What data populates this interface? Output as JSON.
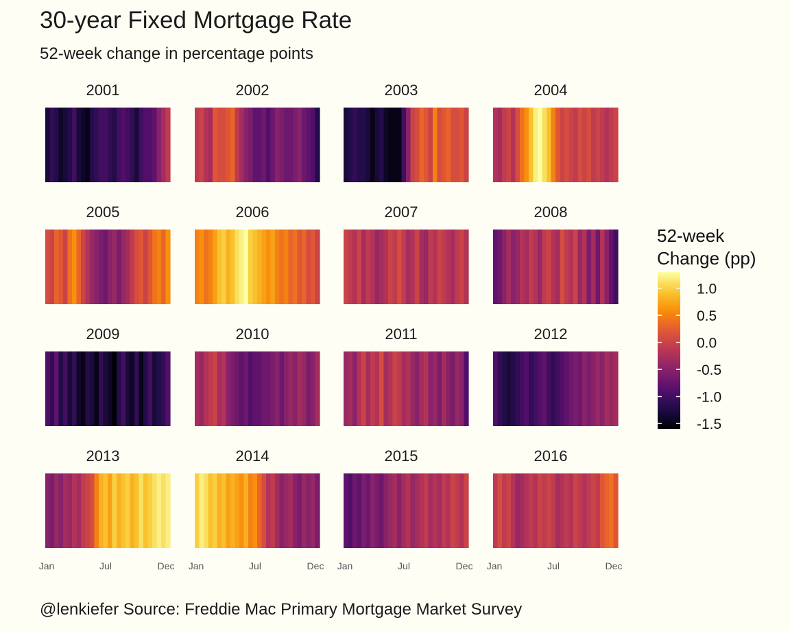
{
  "title": "30-year Fixed Mortgage Rate",
  "subtitle": "52-week change in percentage points",
  "caption": "@lenkiefer Source: Freddie Mac Primary Mortgage Market Survey",
  "chart_data": {
    "type": "heatmap",
    "facet_by": "year",
    "x_tick_labels": [
      "Jan",
      "Jul",
      "Dec"
    ],
    "legend": {
      "title_lines": [
        "52-week",
        "Change (pp)"
      ],
      "ticks": [
        1.0,
        0.5,
        0.0,
        -0.5,
        -1.0,
        -1.5
      ],
      "tick_labels": [
        "1.0",
        "0.5",
        "0.0",
        "-0.5",
        "-1.0",
        "-1.5"
      ],
      "range": [
        -1.6,
        1.3
      ],
      "colormap": "inferno"
    },
    "facets": [
      {
        "year": "2001",
        "values": [
          -1.3,
          -1.1,
          -1.2,
          -1.4,
          -1.3,
          -1.2,
          -1.0,
          -1.3,
          -1.4,
          -1.5,
          -1.2,
          -1.1,
          -1.0,
          -1.0,
          -1.1,
          -1.2,
          -1.0,
          -0.9,
          -1.0,
          -1.1,
          -1.3,
          -1.0,
          -0.9,
          -0.9,
          -0.8,
          -0.5,
          -0.3,
          -0.1
        ]
      },
      {
        "year": "2002",
        "values": [
          -0.1,
          0.0,
          -0.2,
          -0.3,
          0.2,
          0.1,
          0.1,
          0.2,
          0.3,
          -0.1,
          -0.3,
          -0.5,
          -0.6,
          -0.8,
          -0.8,
          -0.7,
          -0.9,
          -0.7,
          -0.5,
          -0.6,
          -0.7,
          -0.7,
          -0.6,
          -0.5,
          -0.7,
          -0.8,
          -0.9,
          -1.2
        ]
      },
      {
        "year": "2003",
        "values": [
          -1.3,
          -1.2,
          -1.1,
          -1.2,
          -1.2,
          -1.3,
          -1.5,
          -1.3,
          -1.2,
          -1.4,
          -1.5,
          -1.5,
          -1.5,
          -1.0,
          -0.5,
          0.0,
          0.1,
          0.3,
          0.2,
          0.0,
          0.5,
          0.1,
          0.2,
          0.3,
          0.1,
          0.1,
          0.2,
          0.0
        ]
      },
      {
        "year": "2004",
        "values": [
          -0.2,
          -0.3,
          -0.1,
          0.0,
          -0.2,
          0.1,
          0.4,
          0.6,
          0.9,
          1.2,
          1.3,
          1.1,
          0.9,
          0.5,
          0.2,
          0.0,
          0.1,
          0.0,
          -0.1,
          0.1,
          0.0,
          0.1,
          -0.1,
          0.0,
          -0.1,
          -0.2,
          -0.1,
          0.0
        ]
      },
      {
        "year": "2005",
        "values": [
          0.1,
          0.0,
          0.3,
          0.2,
          0.0,
          0.4,
          0.6,
          0.3,
          0.0,
          -0.2,
          -0.4,
          -0.5,
          -0.6,
          -0.7,
          -0.5,
          -0.4,
          -0.6,
          -0.4,
          -0.3,
          -0.1,
          0.1,
          0.2,
          0.0,
          0.2,
          0.4,
          0.5,
          0.3,
          0.6
        ]
      },
      {
        "year": "2006",
        "values": [
          0.5,
          0.6,
          0.4,
          0.5,
          0.7,
          0.9,
          1.0,
          0.8,
          0.9,
          1.1,
          1.2,
          1.3,
          1.0,
          0.9,
          0.8,
          0.7,
          0.6,
          0.7,
          0.5,
          0.4,
          0.5,
          0.3,
          0.4,
          0.2,
          0.3,
          0.1,
          0.2,
          0.0
        ]
      },
      {
        "year": "2007",
        "values": [
          0.0,
          -0.1,
          -0.2,
          0.0,
          -0.3,
          -0.1,
          -0.2,
          -0.4,
          -0.3,
          -0.2,
          0.0,
          -0.1,
          0.1,
          -0.1,
          -0.3,
          -0.2,
          0.0,
          -0.3,
          -0.4,
          -0.1,
          -0.2,
          0.0,
          -0.1,
          -0.2,
          -0.3,
          -0.1,
          0.0,
          -0.2
        ]
      },
      {
        "year": "2008",
        "values": [
          -0.8,
          -0.7,
          -0.5,
          -0.3,
          -0.5,
          -0.4,
          -0.2,
          -0.3,
          -0.1,
          -0.2,
          -0.4,
          -0.1,
          0.0,
          -0.2,
          -0.3,
          0.1,
          -0.1,
          -0.2,
          0.0,
          -0.4,
          -0.2,
          -0.6,
          -0.3,
          -0.7,
          -0.2,
          -0.5,
          -0.8,
          -1.0
        ]
      },
      {
        "year": "2009",
        "values": [
          -0.9,
          -1.1,
          -0.8,
          -1.2,
          -1.0,
          -1.3,
          -1.1,
          -1.4,
          -1.5,
          -1.2,
          -1.3,
          -1.5,
          -1.1,
          -1.3,
          -1.4,
          -1.6,
          -1.2,
          -1.0,
          -1.3,
          -1.4,
          -1.1,
          -1.5,
          -1.2,
          -1.0,
          -1.3,
          -1.2,
          -1.1,
          -0.9
        ]
      },
      {
        "year": "2010",
        "values": [
          -0.3,
          -0.4,
          -0.2,
          -0.1,
          0.0,
          -0.3,
          -0.2,
          -0.5,
          -0.6,
          -0.7,
          -0.8,
          -0.7,
          -0.9,
          -0.8,
          -0.8,
          -0.7,
          -0.7,
          -0.6,
          -0.5,
          -0.7,
          -0.5,
          -0.4,
          -0.5,
          -0.3,
          -0.4,
          -0.6,
          -0.5,
          -0.3
        ]
      },
      {
        "year": "2011",
        "values": [
          -0.4,
          -0.3,
          -0.5,
          -0.2,
          0.0,
          -0.3,
          -0.1,
          -0.2,
          0.1,
          -0.3,
          -0.2,
          0.0,
          -0.1,
          -0.3,
          -0.2,
          -0.4,
          -0.5,
          -0.3,
          -0.2,
          -0.5,
          -0.4,
          -0.6,
          -0.3,
          -0.5,
          -0.6,
          -0.4,
          -0.5,
          -0.9
        ]
      },
      {
        "year": "2012",
        "values": [
          -0.9,
          -1.1,
          -1.2,
          -1.3,
          -1.2,
          -1.1,
          -1.0,
          -0.9,
          -1.1,
          -1.0,
          -0.9,
          -0.8,
          -1.0,
          -1.1,
          -1.0,
          -0.9,
          -0.8,
          -0.7,
          -0.6,
          -0.7,
          -0.5,
          -0.6,
          -0.5,
          -0.4,
          -0.5,
          -0.3,
          -0.4,
          -0.3
        ]
      },
      {
        "year": "2013",
        "values": [
          -0.5,
          -0.6,
          -0.4,
          -0.5,
          -0.3,
          -0.4,
          -0.2,
          -0.3,
          -0.1,
          0.0,
          0.1,
          0.5,
          0.8,
          0.9,
          0.7,
          1.0,
          0.8,
          0.9,
          1.0,
          0.8,
          0.9,
          1.1,
          0.9,
          1.0,
          1.1,
          1.2,
          1.1,
          1.2
        ]
      },
      {
        "year": "2014",
        "values": [
          1.0,
          1.2,
          1.1,
          0.9,
          1.0,
          0.8,
          0.9,
          0.7,
          0.8,
          0.7,
          0.6,
          0.8,
          0.5,
          0.6,
          0.3,
          0.1,
          -0.2,
          -0.1,
          -0.3,
          -0.5,
          -0.4,
          -0.3,
          -0.5,
          -0.6,
          -0.4,
          -0.5,
          -0.4,
          -0.6
        ]
      },
      {
        "year": "2015",
        "values": [
          -0.8,
          -0.9,
          -0.7,
          -0.8,
          -0.6,
          -0.7,
          -0.5,
          -0.6,
          -0.7,
          -0.5,
          -0.4,
          -0.3,
          -0.5,
          -0.3,
          -0.2,
          -0.4,
          -0.3,
          -0.2,
          -0.1,
          -0.3,
          -0.2,
          -0.3,
          -0.1,
          -0.2,
          0.0,
          -0.1,
          -0.2,
          0.0
        ]
      },
      {
        "year": "2016",
        "values": [
          -0.1,
          0.1,
          -0.1,
          0.0,
          -0.2,
          -0.4,
          -0.3,
          -0.2,
          -0.1,
          -0.2,
          0.0,
          -0.1,
          0.0,
          -0.1,
          -0.3,
          -0.2,
          -0.1,
          -0.2,
          0.0,
          -0.1,
          -0.2,
          -0.1,
          0.0,
          -0.1,
          0.2,
          0.3,
          0.4,
          0.2
        ]
      }
    ]
  }
}
